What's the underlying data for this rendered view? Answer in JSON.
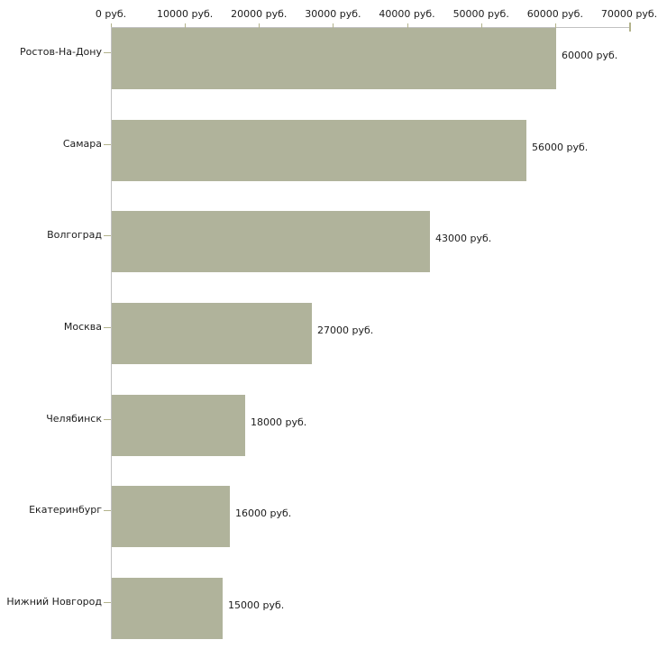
{
  "chart_data": {
    "type": "bar",
    "orientation": "horizontal",
    "title": "",
    "categories": [
      "Ростов-На-Дону",
      "Самара",
      "Волгоград",
      "Москва",
      "Челябинск",
      "Екатеринбург",
      "Нижний Новгород"
    ],
    "values": [
      60000,
      56000,
      43000,
      27000,
      18000,
      16000,
      15000
    ],
    "value_labels": [
      "60000 руб.",
      "56000 руб.",
      "43000 руб.",
      "27000 руб.",
      "18000 руб.",
      "16000 руб.",
      "15000 руб."
    ],
    "unit": "руб.",
    "x_axis": {
      "position": "top",
      "min": 0,
      "max": 70000,
      "tick_step": 10000,
      "tick_labels": [
        "0 руб.",
        "10000 руб.",
        "20000 руб.",
        "30000 руб.",
        "40000 руб.",
        "50000 руб.",
        "60000 руб.",
        "70000 руб."
      ]
    },
    "grid": false,
    "legend": false,
    "colors": {
      "bar": "#b0b39b",
      "axis_line": "#c1c1c1",
      "tick_mark": "#b3b38c",
      "text": "#1c1c1c",
      "background": "#ffffff"
    }
  }
}
